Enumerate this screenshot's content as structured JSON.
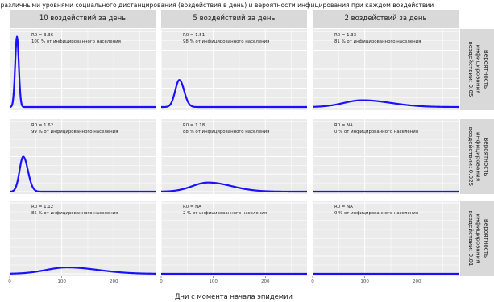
{
  "chart_data": {
    "type": "line",
    "title": "с различными уровнями социального дистанцирования (воздействия в день) и вероятности инфицирования при каждом воздействии",
    "xlabel": "Дни с момента начала эпидемии",
    "ylabel": "",
    "xlim": [
      0,
      280
    ],
    "x_ticks": [
      0,
      100,
      200
    ],
    "ylim": [
      0,
      1
    ],
    "grid": true,
    "line_color": "#1a10ff",
    "panel_bg": "#ebebeb",
    "strip_bg": "#d9d9d9",
    "col_strips": [
      "10 воздействий за день",
      "5 воздействий за день",
      "2 воздействий за день"
    ],
    "row_strips": [
      [
        "Вероятность",
        "инфицирования",
        "воздействии: 0.05"
      ],
      [
        "Вероятность",
        "инфицирования",
        "воздействии: 0.025"
      ],
      [
        "Вероятность",
        "инфицирования",
        "воздействии: 0.01"
      ]
    ],
    "panels": [
      {
        "row": 0,
        "col": 0,
        "r0": "R0 = 3.36",
        "pct": "100 % от инфицированного населения",
        "peak_x": 14,
        "peak_y": 0.93,
        "sigma_left": 3.5,
        "sigma_right": 3.5
      },
      {
        "row": 0,
        "col": 1,
        "r0": "R0 = 1.51",
        "pct": "98 % от инфицированного населения",
        "peak_x": 35,
        "peak_y": 0.36,
        "sigma_left": 8,
        "sigma_right": 9
      },
      {
        "row": 0,
        "col": 2,
        "r0": "R0 = 1.33",
        "pct": "81 % от инфицированного населения",
        "peak_x": 95,
        "peak_y": 0.09,
        "sigma_left": 35,
        "sigma_right": 55
      },
      {
        "row": 1,
        "col": 0,
        "r0": "R0 = 1.62",
        "pct": "99 % от инфицированного населения",
        "peak_x": 26,
        "peak_y": 0.5,
        "sigma_left": 7,
        "sigma_right": 9
      },
      {
        "row": 1,
        "col": 1,
        "r0": "R0 = 1.18",
        "pct": "88 % от инфицированного населения",
        "peak_x": 90,
        "peak_y": 0.13,
        "sigma_left": 30,
        "sigma_right": 45
      },
      {
        "row": 1,
        "col": 2,
        "r0": "R0 =  NA",
        "pct": "0 % от инфицированного населения",
        "peak_x": 0,
        "peak_y": 0,
        "sigma_left": 1,
        "sigma_right": 1
      },
      {
        "row": 2,
        "col": 0,
        "r0": "R0 = 1.12",
        "pct": "85 % от инфицированного населения",
        "peak_x": 110,
        "peak_y": 0.09,
        "sigma_left": 40,
        "sigma_right": 60
      },
      {
        "row": 2,
        "col": 1,
        "r0": "R0 =  NA",
        "pct": "2 % от инфицированного населения",
        "peak_x": 0,
        "peak_y": 0,
        "sigma_left": 1,
        "sigma_right": 1
      },
      {
        "row": 2,
        "col": 2,
        "r0": "R0 =  NA",
        "pct": "0 % от инфицированного населения",
        "peak_x": 0,
        "peak_y": 0,
        "sigma_left": 1,
        "sigma_right": 1
      }
    ]
  }
}
